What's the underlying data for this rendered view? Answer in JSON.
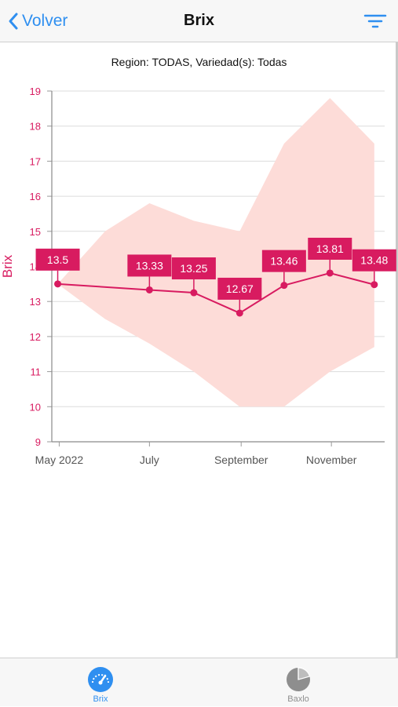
{
  "nav": {
    "back_label": "Volver",
    "title": "Brix"
  },
  "subtitle": "Region: TODAS, Variedad(s): Todas",
  "colors": {
    "accent": "#2f8ff0",
    "series": "#d81b60",
    "band": "#fddcd8",
    "inactive": "#8e8e8e"
  },
  "tabs": [
    {
      "label": "Brix",
      "icon": "gauge-icon",
      "active": true
    },
    {
      "label": "Baxlo",
      "icon": "pie-chart-icon",
      "active": false
    }
  ],
  "chart_data": {
    "type": "line",
    "ylabel": "Brix",
    "xlabel": "",
    "ylim": [
      9,
      19
    ],
    "yticks": [
      9,
      10,
      11,
      12,
      13,
      14,
      15,
      16,
      17,
      18,
      19
    ],
    "xlim": [
      "2022-04-26",
      "2022-12-07"
    ],
    "xticks": [
      {
        "date": "2022-05-01",
        "label": "May 2022"
      },
      {
        "date": "2022-07-01",
        "label": "July"
      },
      {
        "date": "2022-09-01",
        "label": "September"
      },
      {
        "date": "2022-11-01",
        "label": "November"
      }
    ],
    "grid": true,
    "series": [
      {
        "x": [
          "2022-04-30",
          "2022-07-01",
          "2022-07-31",
          "2022-08-31",
          "2022-09-30",
          "2022-10-31",
          "2022-11-30"
        ],
        "values": [
          13.5,
          13.33,
          13.25,
          12.67,
          13.46,
          13.81,
          13.48
        ],
        "labels": [
          "13.5",
          "13.33",
          "13.25",
          "12.67",
          "13.46",
          "13.81",
          "13.48"
        ]
      }
    ],
    "band": {
      "x": [
        "2022-04-30",
        "2022-06-01",
        "2022-07-01",
        "2022-07-31",
        "2022-08-31",
        "2022-09-30",
        "2022-10-31",
        "2022-11-30"
      ],
      "upper": [
        13.5,
        15.0,
        15.8,
        15.3,
        15.0,
        17.5,
        18.8,
        17.5
      ],
      "lower": [
        13.5,
        12.5,
        11.8,
        11.0,
        10.0,
        10.0,
        11.0,
        11.7
      ]
    }
  }
}
